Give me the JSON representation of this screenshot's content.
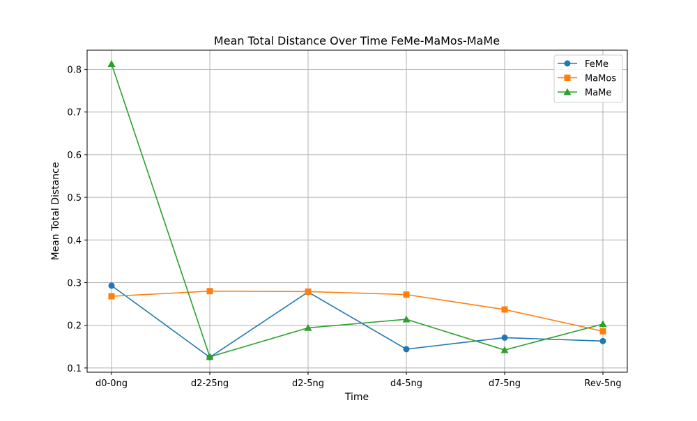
{
  "chart_data": {
    "type": "line",
    "title": "Mean Total Distance Over Time FeMe-MaMos-MaMe",
    "xlabel": "Time",
    "ylabel": "Mean Total Distance",
    "categories": [
      "d0-0ng",
      "d2-25ng",
      "d2-5ng",
      "d4-5ng",
      "d7-5ng",
      "Rev-5ng"
    ],
    "ylim": [
      0.09,
      0.845
    ],
    "yticks": [
      0.1,
      0.2,
      0.3,
      0.4,
      0.5,
      0.6,
      0.7,
      0.8
    ],
    "ytick_labels": [
      "0.1",
      "0.2",
      "0.3",
      "0.4",
      "0.5",
      "0.6",
      "0.7",
      "0.8"
    ],
    "grid": true,
    "legend_position": "top-right",
    "series": [
      {
        "name": "FeMe",
        "color": "#1f77b4",
        "marker": "circle",
        "values": [
          0.293,
          0.125,
          0.278,
          0.144,
          0.171,
          0.163
        ]
      },
      {
        "name": "MaMos",
        "color": "#ff7f0e",
        "marker": "square",
        "values": [
          0.268,
          0.28,
          0.279,
          0.272,
          0.237,
          0.186
        ]
      },
      {
        "name": "MaMe",
        "color": "#2ca02c",
        "marker": "triangle",
        "values": [
          0.813,
          0.126,
          0.194,
          0.214,
          0.142,
          0.203
        ]
      }
    ]
  }
}
